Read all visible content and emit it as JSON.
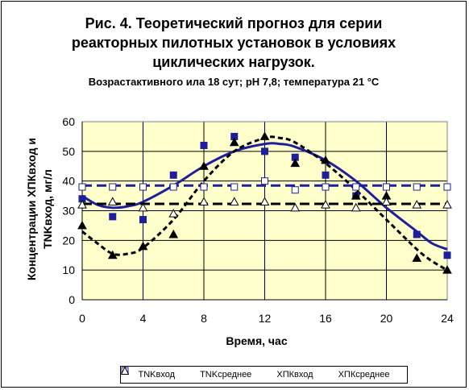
{
  "chart_data": {
    "type": "scatter",
    "title": [
      "Рис. 4. Теоретический прогноз для серии",
      "реакторных пилотных установок в условиях",
      "циклических нагрузок."
    ],
    "subtitle": "Возрастактивного ила 18 сут; pH 7,8; температура 21 °С",
    "xlabel": "Время, час",
    "ylabel": [
      "Концентрации ХПКвход и",
      "TNKвход, мг/л"
    ],
    "xlim": [
      0,
      24
    ],
    "ylim": [
      0,
      60
    ],
    "xticks": [
      0,
      4,
      8,
      12,
      16,
      20,
      24
    ],
    "yticks": [
      0,
      10,
      20,
      30,
      40,
      50,
      60
    ],
    "grid": true,
    "plot_background": "#ffffcc",
    "legend_position": "bottom",
    "series": [
      {
        "name": "TNKвход",
        "marker": "filled-square",
        "color": "#1f1f9c",
        "x": [
          0,
          2,
          4,
          6,
          8,
          10,
          12,
          14,
          16,
          18,
          20,
          22,
          24
        ],
        "y": [
          34,
          28,
          27,
          42,
          52,
          55,
          50,
          48,
          42,
          35,
          38,
          22,
          15
        ]
      },
      {
        "name": "TNKсреднее",
        "marker": "open-square",
        "color": "#1f1f9c",
        "x": [
          0,
          2,
          4,
          6,
          8,
          10,
          12,
          14,
          16,
          18,
          20,
          22,
          24
        ],
        "y": [
          38,
          38,
          38,
          38,
          38,
          38,
          40,
          37,
          38,
          38,
          38,
          38,
          38
        ]
      },
      {
        "name": "ХПКвход",
        "marker": "filled-triangle",
        "color": "#000000",
        "x": [
          0,
          2,
          4,
          6,
          8,
          10,
          12,
          14,
          16,
          18,
          20,
          22,
          24
        ],
        "y": [
          25,
          15,
          18,
          22,
          45,
          53,
          55,
          46,
          47,
          35,
          35,
          14,
          10
        ]
      },
      {
        "name": "ХПКсреднее",
        "marker": "open-triangle",
        "color": "#000000",
        "x": [
          0,
          2,
          4,
          6,
          8,
          10,
          12,
          14,
          16,
          18,
          20,
          22,
          24
        ],
        "y": [
          32,
          33,
          31,
          29,
          33,
          33,
          33,
          31,
          32,
          31,
          33,
          32,
          32
        ]
      }
    ],
    "trend_lines": [
      {
        "style": "solid",
        "color": "#1f1f9c",
        "x": [
          0,
          1,
          2,
          3,
          4,
          6,
          8,
          10,
          12,
          13,
          14,
          16,
          18,
          20,
          22,
          23,
          24
        ],
        "y": [
          35,
          32,
          31,
          31.5,
          33,
          38.5,
          45,
          50,
          52.5,
          52.5,
          51.5,
          47,
          40,
          31,
          23,
          19,
          17
        ]
      },
      {
        "style": "dashed",
        "color": "#000000",
        "x": [
          0,
          1,
          2,
          3,
          4,
          6,
          8,
          10,
          12,
          13,
          14,
          16,
          18,
          20,
          22,
          23,
          24
        ],
        "y": [
          23,
          19,
          15.5,
          15.5,
          17.5,
          27,
          40,
          50,
          54.5,
          54.5,
          53,
          46,
          37,
          27,
          17,
          13,
          10
        ]
      },
      {
        "style": "dashed",
        "color": "#1f1f9c",
        "x": [
          0,
          24
        ],
        "y": [
          38.5,
          38.5
        ]
      },
      {
        "style": "dashed",
        "color": "#000000",
        "x": [
          0,
          24
        ],
        "y": [
          32.3,
          32.3
        ]
      }
    ]
  }
}
